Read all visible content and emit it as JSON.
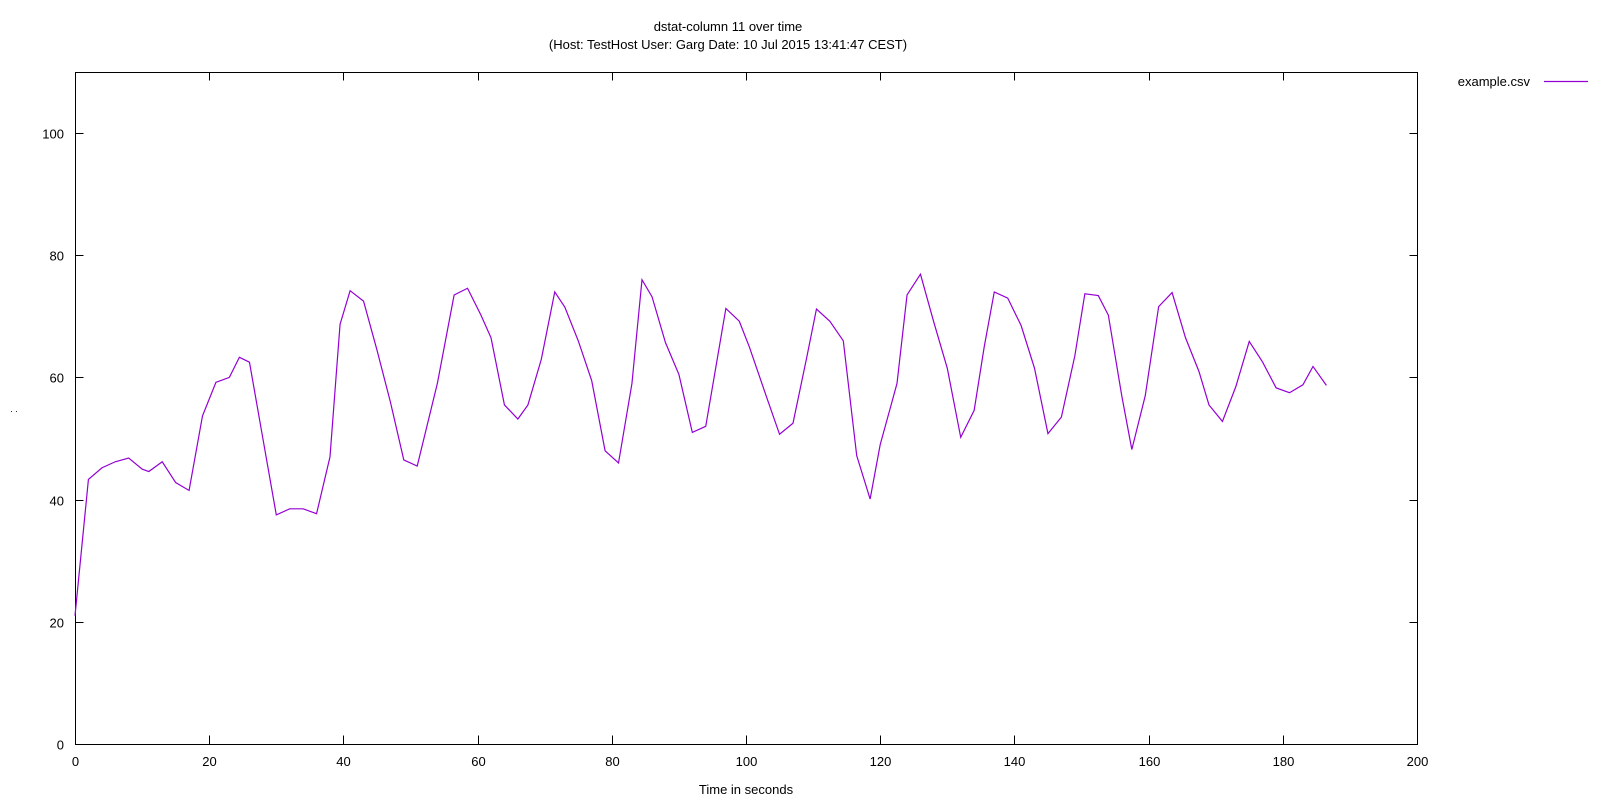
{
  "chart_data": {
    "type": "line",
    "title": "dstat-column 11 over time",
    "subtitle": "(Host: TestHost User: Garg Date: 10 Jul 2015 13:41:47 CEST)",
    "xlabel": "Time in seconds",
    "ylabel": ". .",
    "xlim": [
      0,
      200
    ],
    "ylim": [
      0,
      110
    ],
    "xticks": [
      0,
      20,
      40,
      60,
      80,
      100,
      120,
      140,
      160,
      180,
      200
    ],
    "yticks": [
      0,
      20,
      40,
      60,
      80,
      100
    ],
    "grid": false,
    "legend_position": "outside top-right",
    "series": [
      {
        "name": "example.csv",
        "color": "#9400d3",
        "points": [
          [
            0,
            21
          ],
          [
            2,
            43.3
          ],
          [
            4,
            45.2
          ],
          [
            6,
            46.2
          ],
          [
            8,
            46.8
          ],
          [
            10,
            45
          ],
          [
            11,
            44.6
          ],
          [
            13,
            46.2
          ],
          [
            15,
            42.8
          ],
          [
            17,
            41.5
          ],
          [
            19,
            53.7
          ],
          [
            21,
            59.2
          ],
          [
            23,
            60
          ],
          [
            24.5,
            63.3
          ],
          [
            26,
            62.5
          ],
          [
            28,
            50
          ],
          [
            30,
            37.5
          ],
          [
            32,
            38.5
          ],
          [
            34,
            38.5
          ],
          [
            36,
            37.7
          ],
          [
            38,
            47
          ],
          [
            39.5,
            68.7
          ],
          [
            41,
            74.2
          ],
          [
            43,
            72.5
          ],
          [
            45,
            64.5
          ],
          [
            47,
            56
          ],
          [
            49,
            46.5
          ],
          [
            51,
            45.5
          ],
          [
            54,
            59
          ],
          [
            56.5,
            73.5
          ],
          [
            58.5,
            74.6
          ],
          [
            60.5,
            70.2
          ],
          [
            62,
            66.5
          ],
          [
            64,
            55.5
          ],
          [
            66,
            53.2
          ],
          [
            67.5,
            55.5
          ],
          [
            69.5,
            63
          ],
          [
            71.5,
            74
          ],
          [
            73,
            71.5
          ],
          [
            75,
            66
          ],
          [
            77,
            59.5
          ],
          [
            79,
            48
          ],
          [
            81,
            46
          ],
          [
            83,
            59
          ],
          [
            84.5,
            76
          ],
          [
            86,
            73.2
          ],
          [
            88,
            65.7
          ],
          [
            90,
            60.5
          ],
          [
            92,
            51
          ],
          [
            94,
            52
          ],
          [
            97,
            71.3
          ],
          [
            99,
            69.2
          ],
          [
            100.5,
            65
          ],
          [
            103,
            57
          ],
          [
            105,
            50.7
          ],
          [
            107,
            52.5
          ],
          [
            109,
            63
          ],
          [
            110.5,
            71.2
          ],
          [
            112.5,
            69.2
          ],
          [
            114.5,
            66
          ],
          [
            116.5,
            47.2
          ],
          [
            118.5,
            40.1
          ],
          [
            120,
            49
          ],
          [
            122.5,
            59
          ],
          [
            124,
            73.5
          ],
          [
            126,
            76.9
          ],
          [
            128,
            69
          ],
          [
            130,
            61.5
          ],
          [
            132,
            50.2
          ],
          [
            134,
            54.6
          ],
          [
            135.5,
            65
          ],
          [
            137,
            74
          ],
          [
            139,
            73
          ],
          [
            141,
            68.5
          ],
          [
            143,
            61.5
          ],
          [
            145,
            50.8
          ],
          [
            147,
            53.5
          ],
          [
            149,
            63.5
          ],
          [
            150.5,
            73.7
          ],
          [
            152.5,
            73.4
          ],
          [
            154,
            70.2
          ],
          [
            156,
            57
          ],
          [
            157.5,
            48.2
          ],
          [
            159.5,
            57
          ],
          [
            161.5,
            71.6
          ],
          [
            163.5,
            73.9
          ],
          [
            165.5,
            66.5
          ],
          [
            167.5,
            61
          ],
          [
            169,
            55.5
          ],
          [
            171,
            52.8
          ],
          [
            173,
            58.5
          ],
          [
            175,
            65.9
          ],
          [
            177,
            62.5
          ],
          [
            179,
            58.3
          ],
          [
            181,
            57.5
          ],
          [
            183,
            58.8
          ],
          [
            184.5,
            61.8
          ],
          [
            186.5,
            58.7
          ]
        ]
      }
    ]
  }
}
